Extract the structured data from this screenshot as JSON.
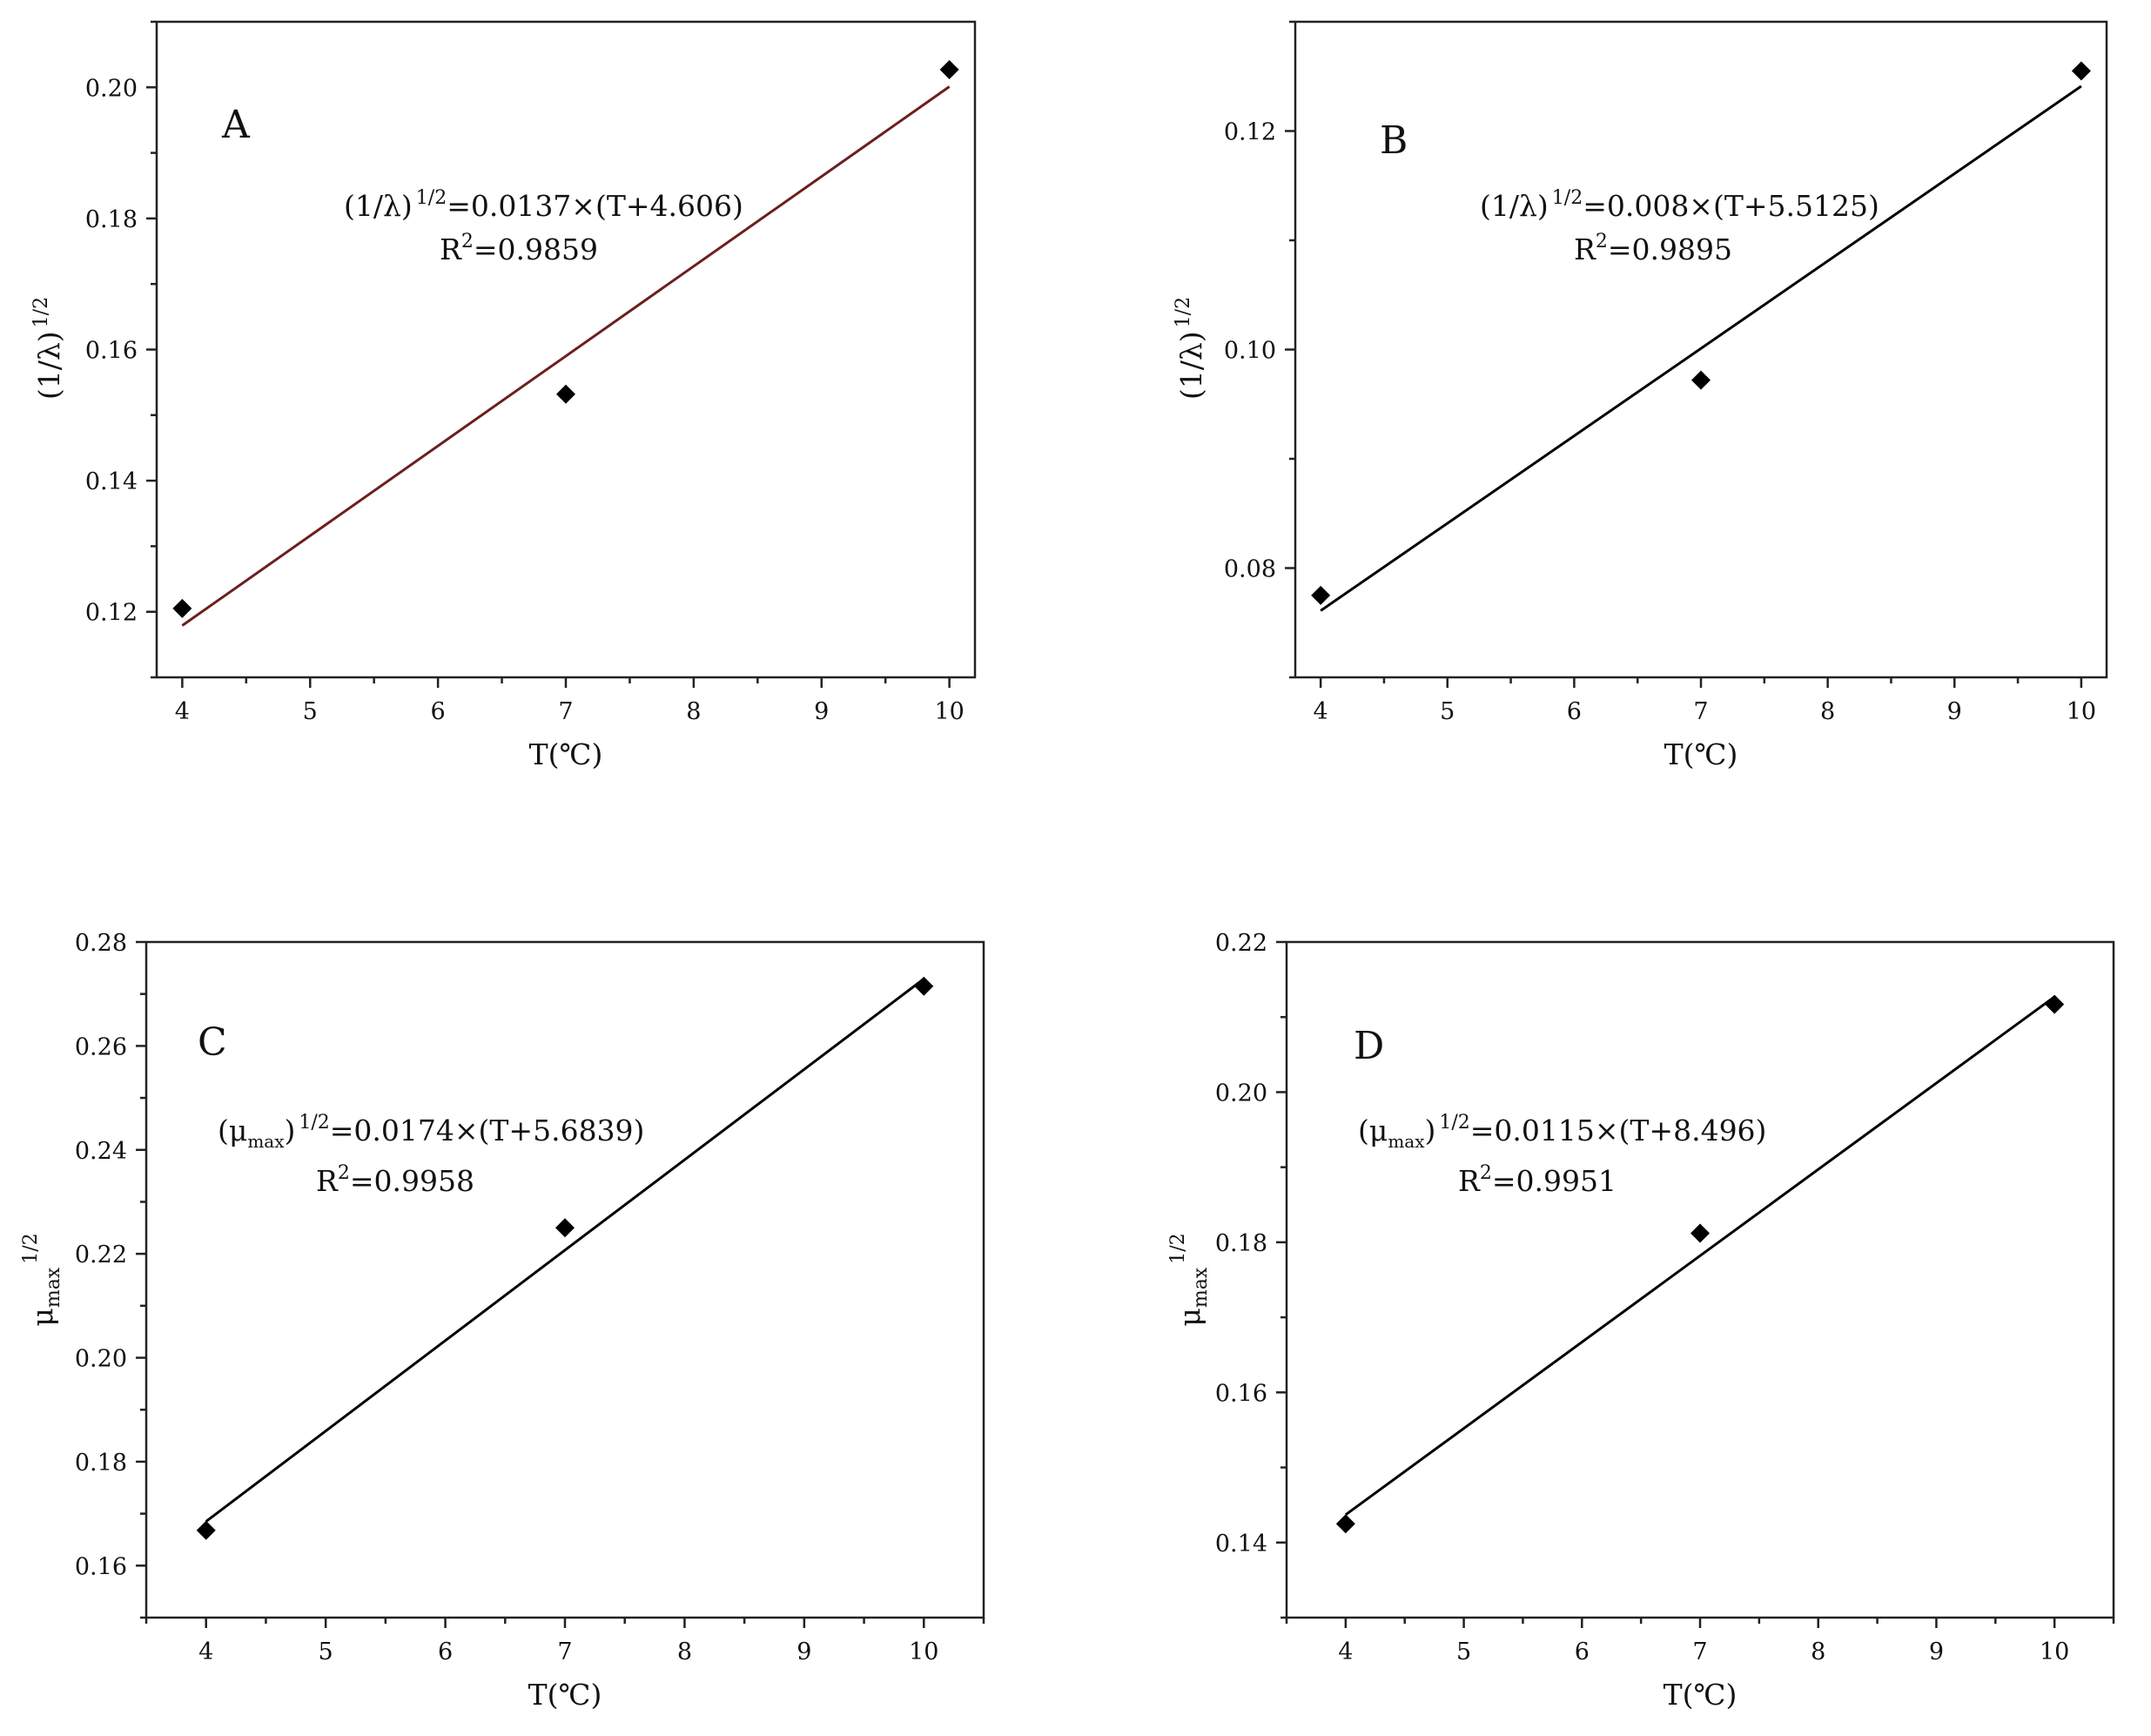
{
  "chart_data": [
    {
      "type": "scatter",
      "panel": "A",
      "xlabel": "T(℃)",
      "ylabel": "(1/λ)",
      "ylabel_sup": "1/2",
      "x": [
        4,
        7,
        10
      ],
      "y": [
        0.1205,
        0.1532,
        0.2027
      ],
      "xlim": [
        3.8,
        10.2
      ],
      "ylim": [
        0.11,
        0.21
      ],
      "xticks": [
        "4",
        "5",
        "6",
        "7",
        "8",
        "9",
        "10"
      ],
      "yticks": [
        "0.12",
        "0.14",
        "0.16",
        "0.18",
        "0.20"
      ],
      "fit": {
        "slope": 0.0137,
        "intercept_shift": 4.606,
        "color": "#6b1f1f"
      },
      "equation": {
        "lhs": "(1/λ)",
        "lhs_sup": "1/2",
        "rhs": "=0.0137×(T+4.606)"
      },
      "r2": {
        "label": "R",
        "sup": "2",
        "value": "=0.9859"
      }
    },
    {
      "type": "scatter",
      "panel": "B",
      "xlabel": "T(℃)",
      "ylabel": "(1/λ)",
      "ylabel_sup": "1/2",
      "x": [
        4,
        7,
        10
      ],
      "y": [
        0.0775,
        0.0972,
        0.1255
      ],
      "xlim": [
        3.8,
        10.2
      ],
      "ylim": [
        0.07,
        0.13
      ],
      "xticks": [
        "4",
        "5",
        "6",
        "7",
        "8",
        "9",
        "10"
      ],
      "yticks": [
        "0.08",
        "0.10",
        "0.12"
      ],
      "fit": {
        "slope": 0.008,
        "intercept_shift": 5.5125,
        "color": "#000000"
      },
      "equation": {
        "lhs": "(1/λ)",
        "lhs_sup": "1/2",
        "rhs": "=0.008×(T+5.5125)"
      },
      "r2": {
        "label": "R",
        "sup": "2",
        "value": "=0.9895"
      }
    },
    {
      "type": "scatter",
      "panel": "C",
      "xlabel": "T(℃)",
      "ylabel": "μ",
      "ylabel_sub": "max",
      "ylabel_sup": "1/2",
      "x": [
        4,
        7,
        10
      ],
      "y": [
        0.1668,
        0.225,
        0.2715
      ],
      "xlim": [
        3.5,
        10.5
      ],
      "ylim": [
        0.15,
        0.28
      ],
      "xticks": [
        "4",
        "5",
        "6",
        "7",
        "8",
        "9",
        "10"
      ],
      "yticks": [
        "0.16",
        "0.18",
        "0.20",
        "0.22",
        "0.24",
        "0.26",
        "0.28"
      ],
      "fit": {
        "slope": 0.0174,
        "intercept_shift": 5.6839,
        "color": "#000000"
      },
      "equation": {
        "lhs": "(μ",
        "lhs_sub": "max",
        "lhs_close": ")",
        "lhs_sup": "1/2",
        "rhs": "=0.0174×(T+5.6839)"
      },
      "r2": {
        "label": "R",
        "sup": "2",
        "value": "=0.9958"
      }
    },
    {
      "type": "scatter",
      "panel": "D",
      "xlabel": "T(℃)",
      "ylabel": "μ",
      "ylabel_sub": "max",
      "ylabel_sup": "1/2",
      "x": [
        4,
        7,
        10
      ],
      "y": [
        0.1425,
        0.1812,
        0.2117
      ],
      "xlim": [
        3.5,
        10.5
      ],
      "ylim": [
        0.13,
        0.22
      ],
      "xticks": [
        "4",
        "5",
        "6",
        "7",
        "8",
        "9",
        "10"
      ],
      "yticks": [
        "0.14",
        "0.16",
        "0.18",
        "0.20",
        "0.22"
      ],
      "fit": {
        "slope": 0.0115,
        "intercept_shift": 8.496,
        "color": "#000000"
      },
      "equation": {
        "lhs": "(μ",
        "lhs_sub": "max",
        "lhs_close": ")",
        "lhs_sup": "1/2",
        "rhs": "=0.0115×(T+8.496)"
      },
      "r2": {
        "label": "R",
        "sup": "2",
        "value": "=0.9951"
      }
    }
  ]
}
